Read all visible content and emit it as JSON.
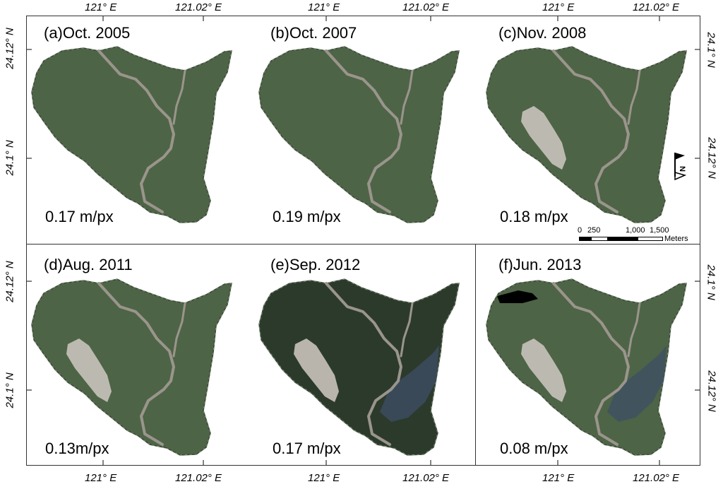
{
  "panels": [
    {
      "title": "(a)Oct. 2005",
      "resolution": "0.17 m/px"
    },
    {
      "title": "(b)Oct. 2007",
      "resolution": "0.19 m/px"
    },
    {
      "title": "(c)Nov. 2008",
      "resolution": "0.18 m/px"
    },
    {
      "title": "(d)Aug. 2011",
      "resolution": "0.13m/px"
    },
    {
      "title": "(e)Sep. 2012",
      "resolution": "0.17 m/px"
    },
    {
      "title": "(f)Jun. 2013",
      "resolution": "0.08 m/px"
    }
  ],
  "axes": {
    "lon_left": "121° E",
    "lon_right": "121.02° E",
    "lat_upper_left": "24.12° N",
    "lat_lower_left": "24.1° N",
    "lat_upper_right": "24.1° N",
    "lat_lower_right": "24.12° N"
  },
  "scale_bar": {
    "labels": [
      "0",
      "250",
      "1,000",
      "1,500"
    ],
    "unit": "Meters"
  },
  "north_arrow": {
    "label": "N",
    "icon": "north-arrow-icon"
  },
  "colors": {
    "forest": "#4e6446",
    "forest_dark": "#2c3a2c",
    "landslide": "#c9c3bb",
    "river": "#9a958c",
    "lake": "#3d4f66"
  }
}
